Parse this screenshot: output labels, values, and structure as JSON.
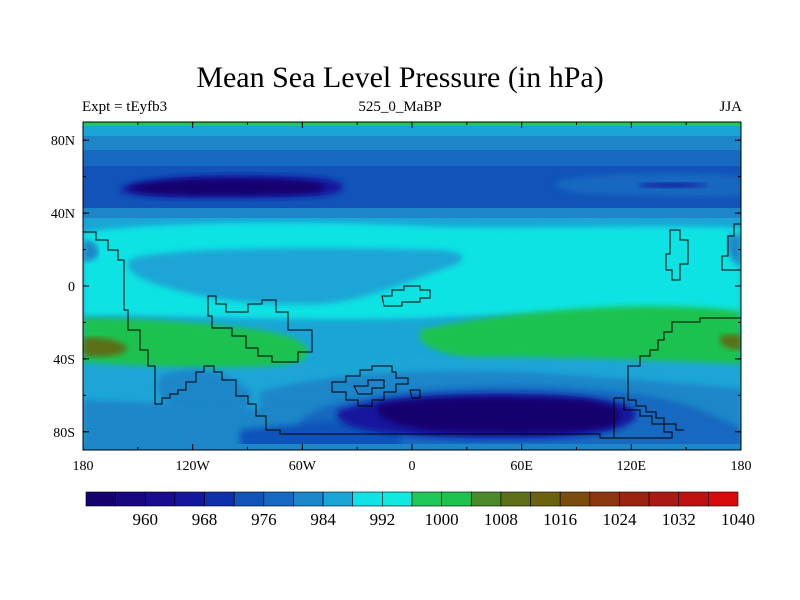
{
  "title": "Mean Sea Level Pressure (in hPa)",
  "left_label": "Expt = tEyfb3",
  "center_label": "525_0_MaBP",
  "right_label": "JJA",
  "lon_ticks": [
    {
      "value": -180,
      "label": "180"
    },
    {
      "value": -120,
      "label": "120W"
    },
    {
      "value": -60,
      "label": "60W"
    },
    {
      "value": 0,
      "label": "0"
    },
    {
      "value": 60,
      "label": "60E"
    },
    {
      "value": 120,
      "label": "120E"
    },
    {
      "value": 180,
      "label": "180"
    }
  ],
  "lat_ticks": [
    {
      "value": 80,
      "label": "80N"
    },
    {
      "value": 40,
      "label": "40N"
    },
    {
      "value": 0,
      "label": "0"
    },
    {
      "value": -40,
      "label": "40S"
    },
    {
      "value": -80,
      "label": "80S"
    }
  ],
  "colorbar": {
    "colors": [
      "#14006e",
      "#170780",
      "#1a0c8f",
      "#14179e",
      "#0d30ad",
      "#1153b9",
      "#1668c0",
      "#1d86c9",
      "#1aa5d6",
      "#10e3e3",
      "#10e8e0",
      "#20c85a",
      "#1ec24f",
      "#4a8a2a",
      "#5c6e18",
      "#6a620e",
      "#7a4d0e",
      "#8c3610",
      "#9a2410",
      "#aa1a12",
      "#c01010",
      "#d80a0a"
    ],
    "labels": [
      {
        "index": 2,
        "text": "960"
      },
      {
        "index": 4,
        "text": "968"
      },
      {
        "index": 6,
        "text": "976"
      },
      {
        "index": 8,
        "text": "984"
      },
      {
        "index": 10,
        "text": "992"
      },
      {
        "index": 12,
        "text": "1000"
      },
      {
        "index": 14,
        "text": "1008"
      },
      {
        "index": 16,
        "text": "1016"
      },
      {
        "index": 18,
        "text": "1024"
      },
      {
        "index": 20,
        "text": "1032"
      },
      {
        "index": 22,
        "text": "1040"
      }
    ]
  }
}
